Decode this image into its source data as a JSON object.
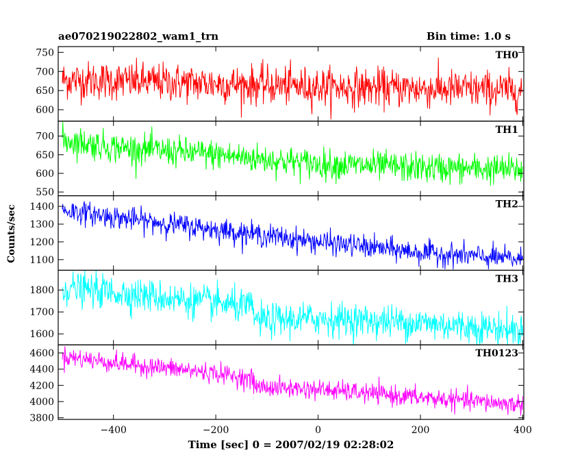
{
  "header": {
    "title": "ae070219022802_wam1_trn",
    "bin_time": "Bin time: 1.0 s"
  },
  "chart_data": {
    "type": "line",
    "xlabel": "Time [sec] 0 = 2007/02/19 02:28:02",
    "ylabel": "Counts/sec",
    "xlim": [
      -508,
      402
    ],
    "x_ticks": [
      -400,
      -200,
      0,
      200,
      400
    ],
    "x_tick_labels": [
      "−400",
      "−200",
      "0",
      "200",
      "400"
    ],
    "x_data_range": [
      -500,
      400
    ],
    "grid": false,
    "panels": [
      {
        "label": "TH0",
        "color": "#ff0000",
        "ylim": [
          570,
          765
        ],
        "yticks": [
          600,
          650,
          700,
          750
        ],
        "trend": {
          "x": [
            -500,
            -400,
            -200,
            0,
            200,
            400
          ],
          "y": [
            678,
            675,
            668,
            660,
            655,
            650
          ]
        },
        "noise_sd": 25
      },
      {
        "label": "TH1",
        "color": "#00ff00",
        "ylim": [
          540,
          740
        ],
        "yticks": [
          550,
          600,
          650,
          700
        ],
        "trend": {
          "x": [
            -500,
            -400,
            -200,
            0,
            200,
            400
          ],
          "y": [
            690,
            670,
            650,
            625,
            615,
            610
          ]
        },
        "noise_sd": 20
      },
      {
        "label": "TH2",
        "color": "#0000ff",
        "ylim": [
          1040,
          1460
        ],
        "yticks": [
          1100,
          1200,
          1300,
          1400
        ],
        "trend": {
          "x": [
            -500,
            -400,
            -200,
            0,
            200,
            400
          ],
          "y": [
            1380,
            1340,
            1270,
            1200,
            1140,
            1100
          ]
        },
        "noise_sd": 32
      },
      {
        "label": "TH3",
        "color": "#00ffff",
        "ylim": [
          1550,
          1890
        ],
        "yticks": [
          1600,
          1700,
          1800
        ],
        "trend": {
          "x": [
            -500,
            -400,
            -200,
            -130,
            -120,
            0,
            200,
            400
          ],
          "y": [
            1810,
            1790,
            1740,
            1720,
            1660,
            1670,
            1650,
            1615
          ]
        },
        "noise_sd": 38
      },
      {
        "label": "TH0123",
        "color": "#ff00ff",
        "ylim": [
          3780,
          4700
        ],
        "yticks": [
          3800,
          4000,
          4200,
          4400,
          4600
        ],
        "trend": {
          "x": [
            -500,
            -400,
            -200,
            -130,
            -120,
            0,
            200,
            400
          ],
          "y": [
            4560,
            4480,
            4350,
            4280,
            4180,
            4150,
            4050,
            3960
          ]
        },
        "noise_sd": 60
      }
    ]
  }
}
